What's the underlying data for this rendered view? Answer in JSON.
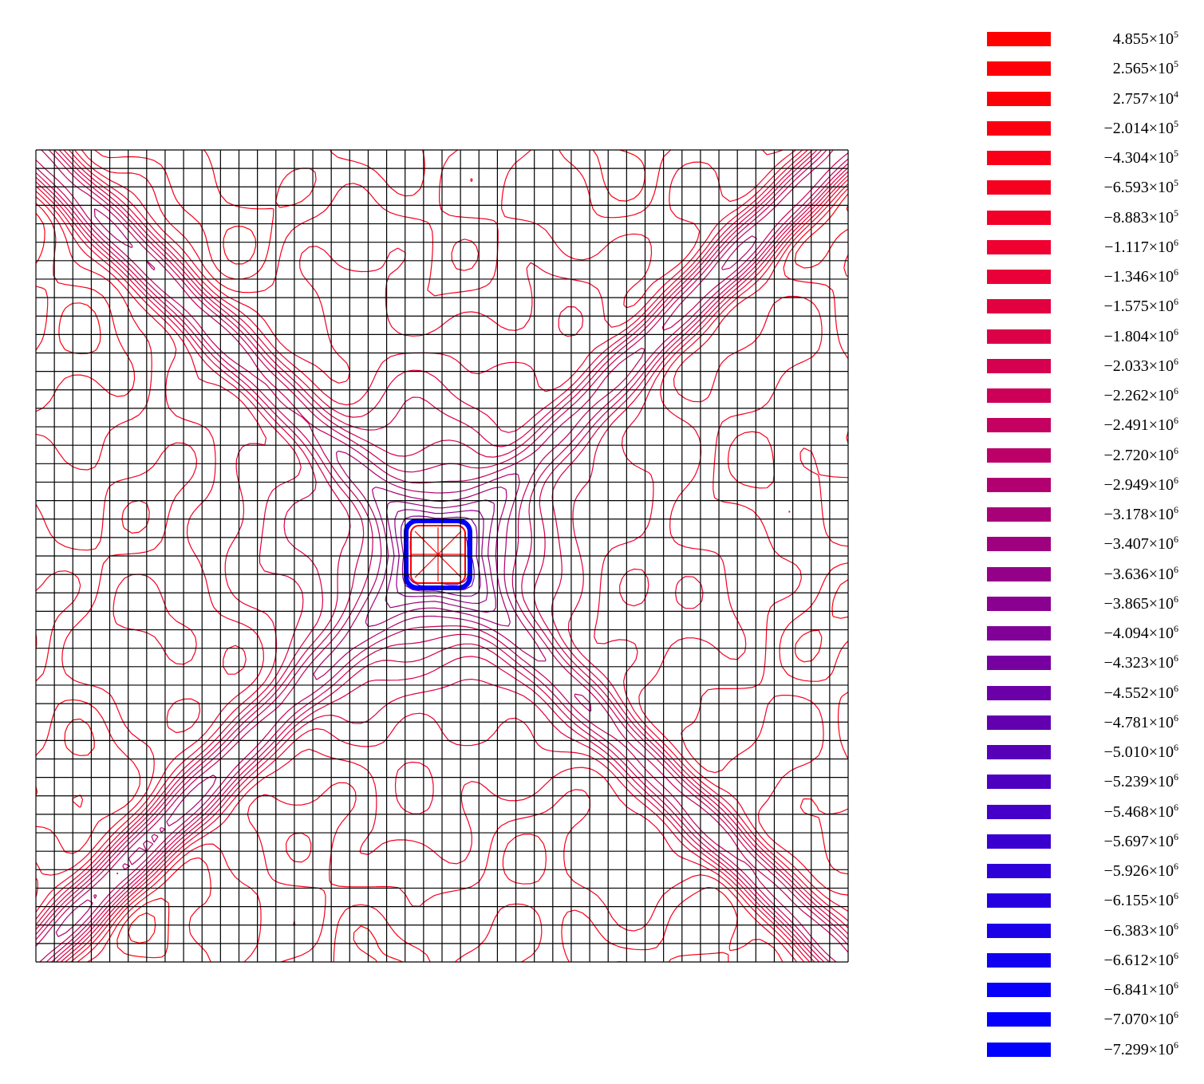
{
  "legend": {
    "entries": [
      {
        "mantissa": "4.855",
        "exp": "5",
        "color": "#ff0000"
      },
      {
        "mantissa": "2.565",
        "exp": "5",
        "color": "#fd0008"
      },
      {
        "mantissa": "2.757",
        "exp": "4",
        "color": "#fc0008"
      },
      {
        "mantissa": "−2.014",
        "exp": "5",
        "color": "#fb0010"
      },
      {
        "mantissa": "−4.304",
        "exp": "5",
        "color": "#f90018"
      },
      {
        "mantissa": "−6.593",
        "exp": "5",
        "color": "#f60020"
      },
      {
        "mantissa": "−8.883",
        "exp": "5",
        "color": "#f30028"
      },
      {
        "mantissa": "−1.117",
        "exp": "6",
        "color": "#ef0030"
      },
      {
        "mantissa": "−1.346",
        "exp": "6",
        "color": "#e90038"
      },
      {
        "mantissa": "−1.575",
        "exp": "6",
        "color": "#e30040"
      },
      {
        "mantissa": "−1.804",
        "exp": "6",
        "color": "#dc0048"
      },
      {
        "mantissa": "−2.033",
        "exp": "6",
        "color": "#d50050"
      },
      {
        "mantissa": "−2.262",
        "exp": "6",
        "color": "#cd0058"
      },
      {
        "mantissa": "−2.491",
        "exp": "6",
        "color": "#c40060"
      },
      {
        "mantissa": "−2.720",
        "exp": "6",
        "color": "#bb0068"
      },
      {
        "mantissa": "−2.949",
        "exp": "6",
        "color": "#b20070"
      },
      {
        "mantissa": "−3.178",
        "exp": "6",
        "color": "#a80078"
      },
      {
        "mantissa": "−3.407",
        "exp": "6",
        "color": "#9e0080"
      },
      {
        "mantissa": "−3.636",
        "exp": "6",
        "color": "#940088"
      },
      {
        "mantissa": "−3.865",
        "exp": "6",
        "color": "#8a0090"
      },
      {
        "mantissa": "−4.094",
        "exp": "6",
        "color": "#800098"
      },
      {
        "mantissa": "−4.323",
        "exp": "6",
        "color": "#7600a0"
      },
      {
        "mantissa": "−4.552",
        "exp": "6",
        "color": "#6c00a8"
      },
      {
        "mantissa": "−4.781",
        "exp": "6",
        "color": "#6200b0"
      },
      {
        "mantissa": "−5.010",
        "exp": "6",
        "color": "#5800b8"
      },
      {
        "mantissa": "−5.239",
        "exp": "6",
        "color": "#4e00c0"
      },
      {
        "mantissa": "−5.468",
        "exp": "6",
        "color": "#4400c8"
      },
      {
        "mantissa": "−5.697",
        "exp": "6",
        "color": "#3a00d0"
      },
      {
        "mantissa": "−5.926",
        "exp": "6",
        "color": "#3000d8"
      },
      {
        "mantissa": "−6.155",
        "exp": "6",
        "color": "#2600e0"
      },
      {
        "mantissa": "−6.383",
        "exp": "6",
        "color": "#1c00e8"
      },
      {
        "mantissa": "−6.612",
        "exp": "6",
        "color": "#1200f0"
      },
      {
        "mantissa": "−6.841",
        "exp": "6",
        "color": "#0800f8"
      },
      {
        "mantissa": "−7.070",
        "exp": "6",
        "color": "#0400fc"
      },
      {
        "mantissa": "−7.299",
        "exp": "6",
        "color": "#0000ff"
      }
    ],
    "times_symbol": "×",
    "base": "10"
  },
  "plot": {
    "grid_color": "#000000",
    "hole_color": "#ff0000",
    "inner_color": "#0000ff",
    "outer_color": "#ff0000"
  }
}
